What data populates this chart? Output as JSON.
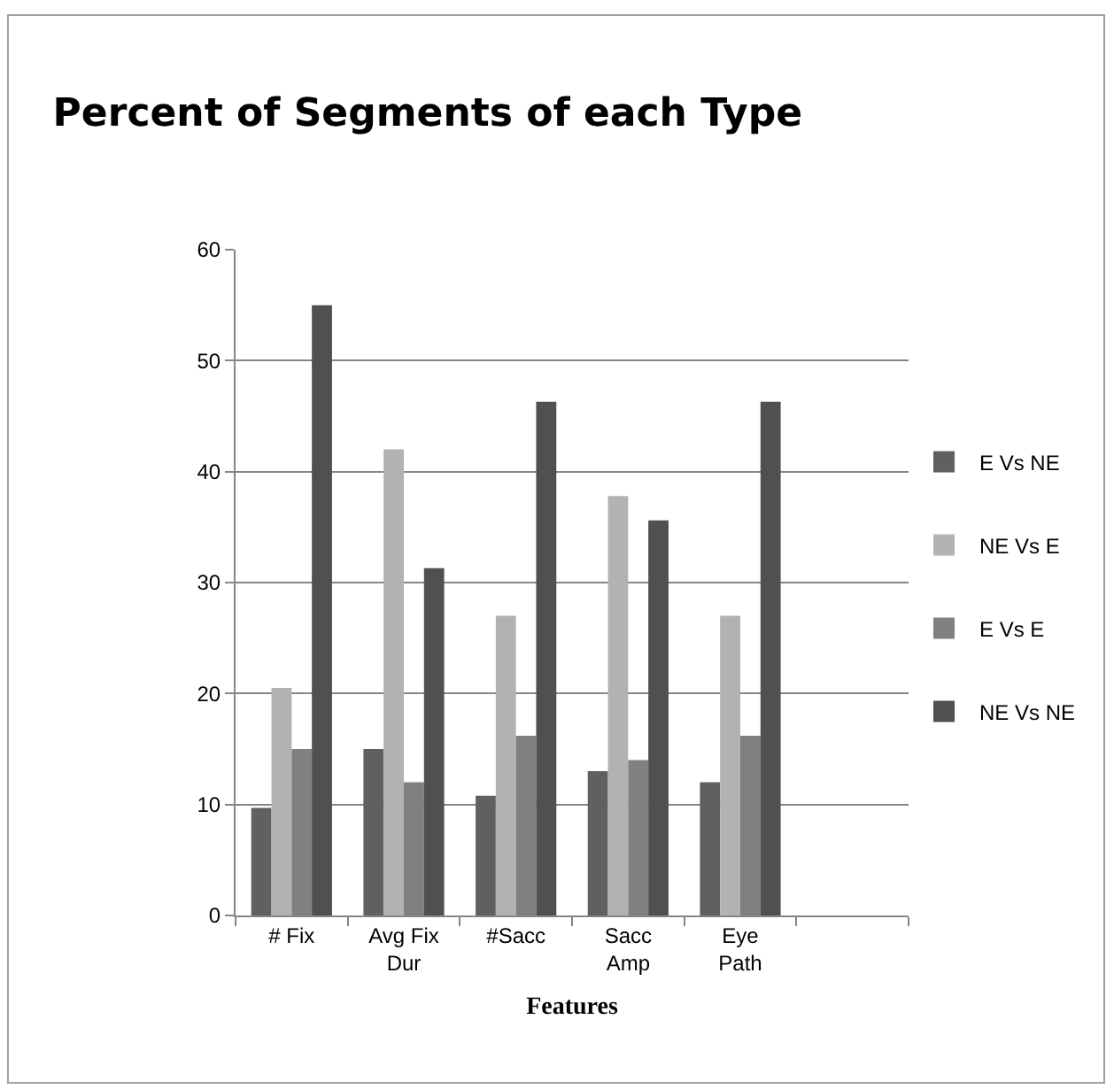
{
  "chart_data": {
    "type": "bar",
    "title": "Percent of Segments of each Type",
    "xlabel": "Features",
    "categories": [
      "# Fix",
      "Avg Fix Dur",
      "#Sacc",
      "Sacc Amp",
      "Eye Path",
      null
    ],
    "series": [
      {
        "name": "E Vs NE",
        "color": "#606060",
        "values": [
          9.7,
          15,
          10.8,
          13,
          12,
          null
        ]
      },
      {
        "name": "NE Vs E",
        "color": "#b2b2b2",
        "values": [
          20.5,
          42,
          27,
          37.8,
          27,
          null
        ]
      },
      {
        "name": "E Vs E",
        "color": "#808080",
        "values": [
          15,
          12,
          16.2,
          14,
          16.2,
          null
        ]
      },
      {
        "name": "NE Vs NE",
        "color": "#505050",
        "values": [
          55,
          31.3,
          46.3,
          35.6,
          46.3,
          null
        ]
      }
    ],
    "ylim": [
      0,
      60
    ],
    "yticks": [
      0,
      10,
      20,
      30,
      40,
      50,
      60
    ],
    "grid": "y",
    "legend": "right"
  }
}
